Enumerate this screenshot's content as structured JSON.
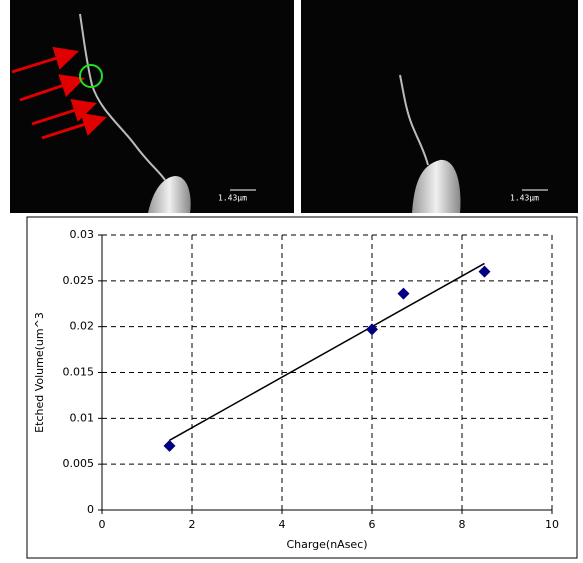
{
  "images": [
    {
      "scale_label": "1.43µm"
    },
    {
      "scale_label": "1.43µm"
    }
  ],
  "chart_data": {
    "type": "scatter",
    "x_label": "Charge(nAsec)",
    "y_label": "Etched Volume(um^3",
    "series": [
      {
        "color": "#000080",
        "x": [
          1.5,
          6,
          6.7,
          8.5
        ],
        "values": [
          0.007,
          0.0197,
          0.0236,
          0.026
        ]
      }
    ],
    "trendline": {
      "color": "#000000",
      "x": [
        1.5,
        8.5
      ],
      "values": [
        0.0076,
        0.0269
      ]
    },
    "xlim": [
      0,
      10
    ],
    "xticks": [
      0,
      2,
      4,
      6,
      8,
      10
    ],
    "ylim": [
      0,
      0.03
    ],
    "yticks": [
      0,
      0.005,
      0.01,
      0.015,
      0.02,
      0.025,
      0.03
    ],
    "grid": true
  }
}
